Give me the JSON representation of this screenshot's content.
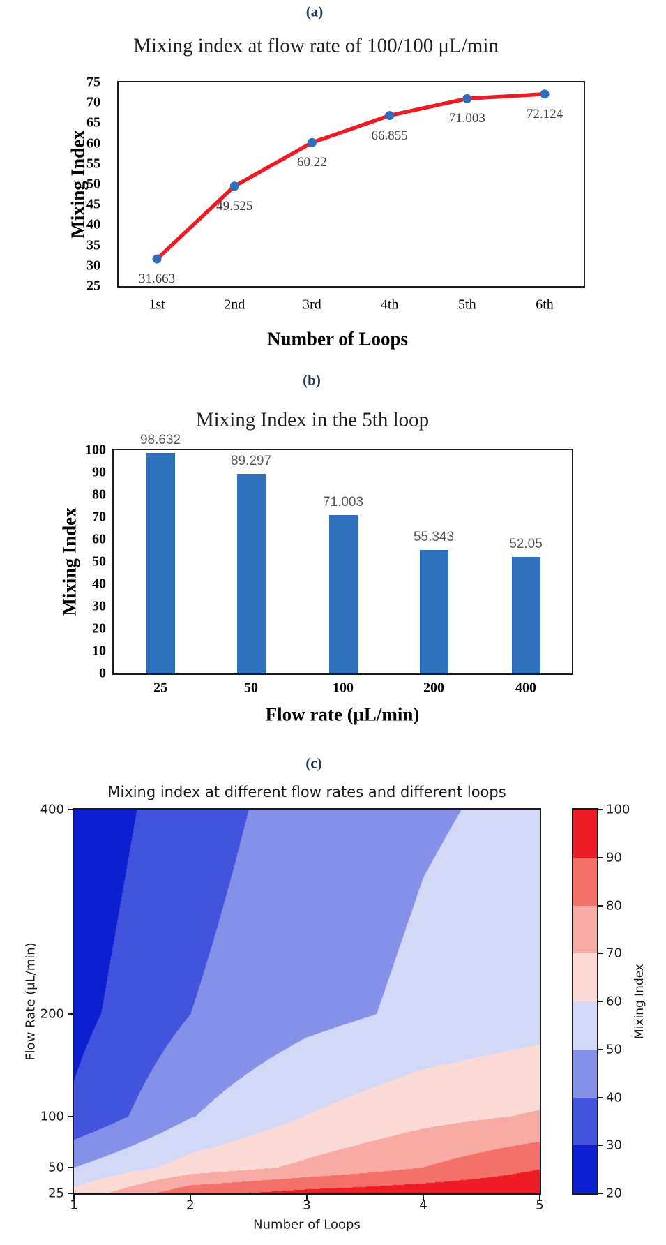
{
  "page": {
    "background": "#ffffff"
  },
  "chart_data": [
    {
      "panel_label": "(a)",
      "type": "line",
      "title": "Mixing index at flow rate of 100/100 μL/min",
      "xlabel": "Number of Loops",
      "ylabel": "Mixing Index",
      "categories": [
        "1st",
        "2nd",
        "3rd",
        "4th",
        "5th",
        "6th"
      ],
      "values": [
        31.663,
        49.525,
        60.22,
        66.855,
        71.003,
        72.124
      ],
      "point_labels": [
        "31.663",
        "49.525",
        "60.22",
        "66.855",
        "71.003",
        "72.124"
      ],
      "ylim": [
        25,
        75
      ],
      "y_ticks": [
        "25",
        "30",
        "35",
        "40",
        "45",
        "50",
        "55",
        "60",
        "65",
        "70",
        "75"
      ],
      "grid": "off",
      "legend": "none",
      "line_color": "#ed1b24",
      "marker_color": "#2e6cbd"
    },
    {
      "panel_label": "(b)",
      "type": "bar",
      "title": "Mixing Index in the 5th loop",
      "xlabel": "Flow rate (μL/min)",
      "ylabel": "Mixing Index",
      "categories": [
        "25",
        "50",
        "100",
        "200",
        "400"
      ],
      "values": [
        98.632,
        89.297,
        71.003,
        55.343,
        52.05
      ],
      "value_labels": [
        "98.632",
        "89.297",
        "71.003",
        "55.343",
        "52.05"
      ],
      "ylim": [
        0,
        100
      ],
      "y_ticks": [
        "0",
        "10",
        "20",
        "30",
        "40",
        "50",
        "60",
        "70",
        "80",
        "90",
        "100"
      ],
      "grid": "off",
      "legend": "none",
      "bar_color": "#2e70bc"
    },
    {
      "panel_label": "(c)",
      "type": "contour",
      "title": "Mixing index at different flow rates and different loops",
      "xlabel": "Number of Loops",
      "ylabel": "Flow Rate (μL/min)",
      "colorbar_label": "Mixing Index",
      "x": [
        1,
        2,
        3,
        4,
        5
      ],
      "y": [
        25,
        50,
        100,
        200,
        400
      ],
      "x_ticks": [
        "1",
        "2",
        "3",
        "4",
        "5"
      ],
      "y_ticks": [
        "25",
        "50",
        "100",
        "200",
        "400"
      ],
      "xlim": [
        1,
        5
      ],
      "ylim": [
        25,
        400
      ],
      "grid": [
        [
          63,
          87,
          93,
          96,
          98.632
        ],
        [
          50,
          64,
          72,
          80,
          89.297
        ],
        [
          31.663,
          49.525,
          60.22,
          66.855,
          71.003
        ],
        [
          27,
          40,
          47,
          52,
          55.343
        ],
        [
          23,
          36,
          44,
          49,
          52.05
        ]
      ],
      "levels": [
        20,
        30,
        40,
        50,
        60,
        70,
        80,
        90,
        100
      ],
      "colorbar_ticks": [
        "20",
        "30",
        "40",
        "50",
        "60",
        "70",
        "80",
        "90",
        "100"
      ],
      "band_colors": [
        "#0c1fd1",
        "#4253dd",
        "#8591e8",
        "#d4d8f7",
        "#fcdad6",
        "#f8aba4",
        "#f4716a",
        "#ee1c24"
      ]
    }
  ]
}
